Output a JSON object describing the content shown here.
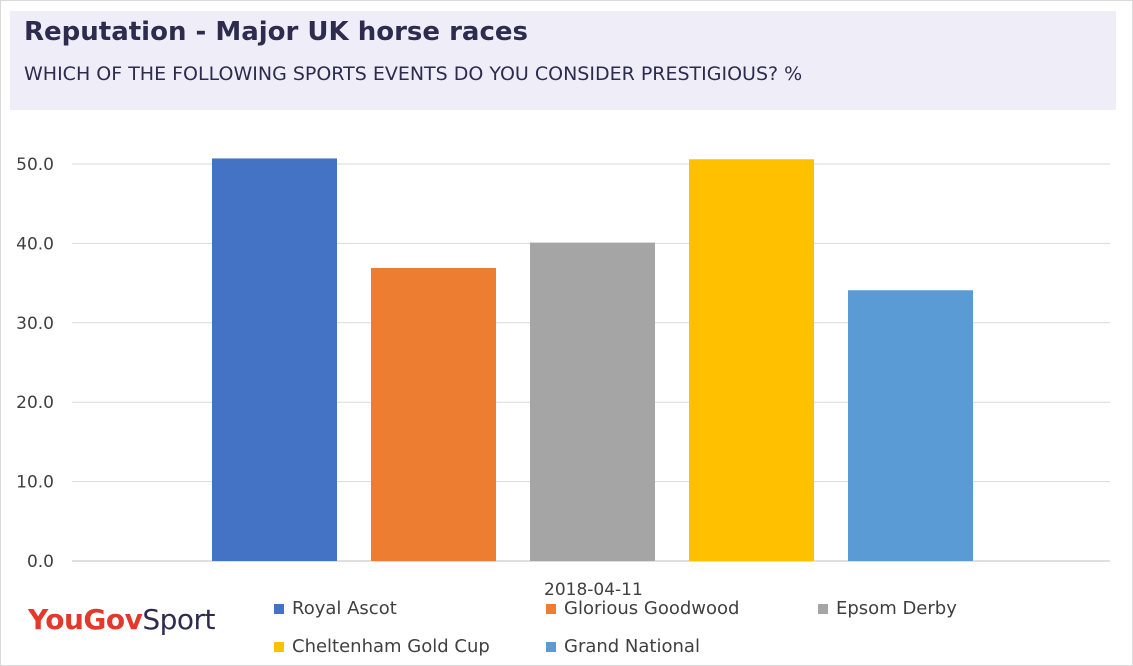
{
  "title": "Reputation - Major UK horse races",
  "subtitle": "WHICH OF THE FOLLOWING SPORTS EVENTS DO YOU CONSIDER PRESTIGIOUS? %",
  "logo": {
    "brand": "YouGov",
    "suffix": "Sport"
  },
  "chart_data": {
    "type": "bar",
    "categories": [
      "2018-04-11"
    ],
    "series": [
      {
        "name": "Royal Ascot",
        "values": [
          50.7
        ],
        "color": "#4472c4"
      },
      {
        "name": "Glorious Goodwood",
        "values": [
          36.9
        ],
        "color": "#ed7d31"
      },
      {
        "name": "Epsom Derby",
        "values": [
          40.1
        ],
        "color": "#a5a5a5"
      },
      {
        "name": "Cheltenham Gold Cup",
        "values": [
          50.6
        ],
        "color": "#ffc000"
      },
      {
        "name": "Grand National",
        "values": [
          34.1
        ],
        "color": "#5b9bd5"
      }
    ],
    "ylim": [
      0,
      50
    ],
    "yticks": [
      "0.0",
      "10.0",
      "20.0",
      "30.0",
      "40.0",
      "50.0"
    ],
    "grid": true,
    "legend": "bottom"
  }
}
